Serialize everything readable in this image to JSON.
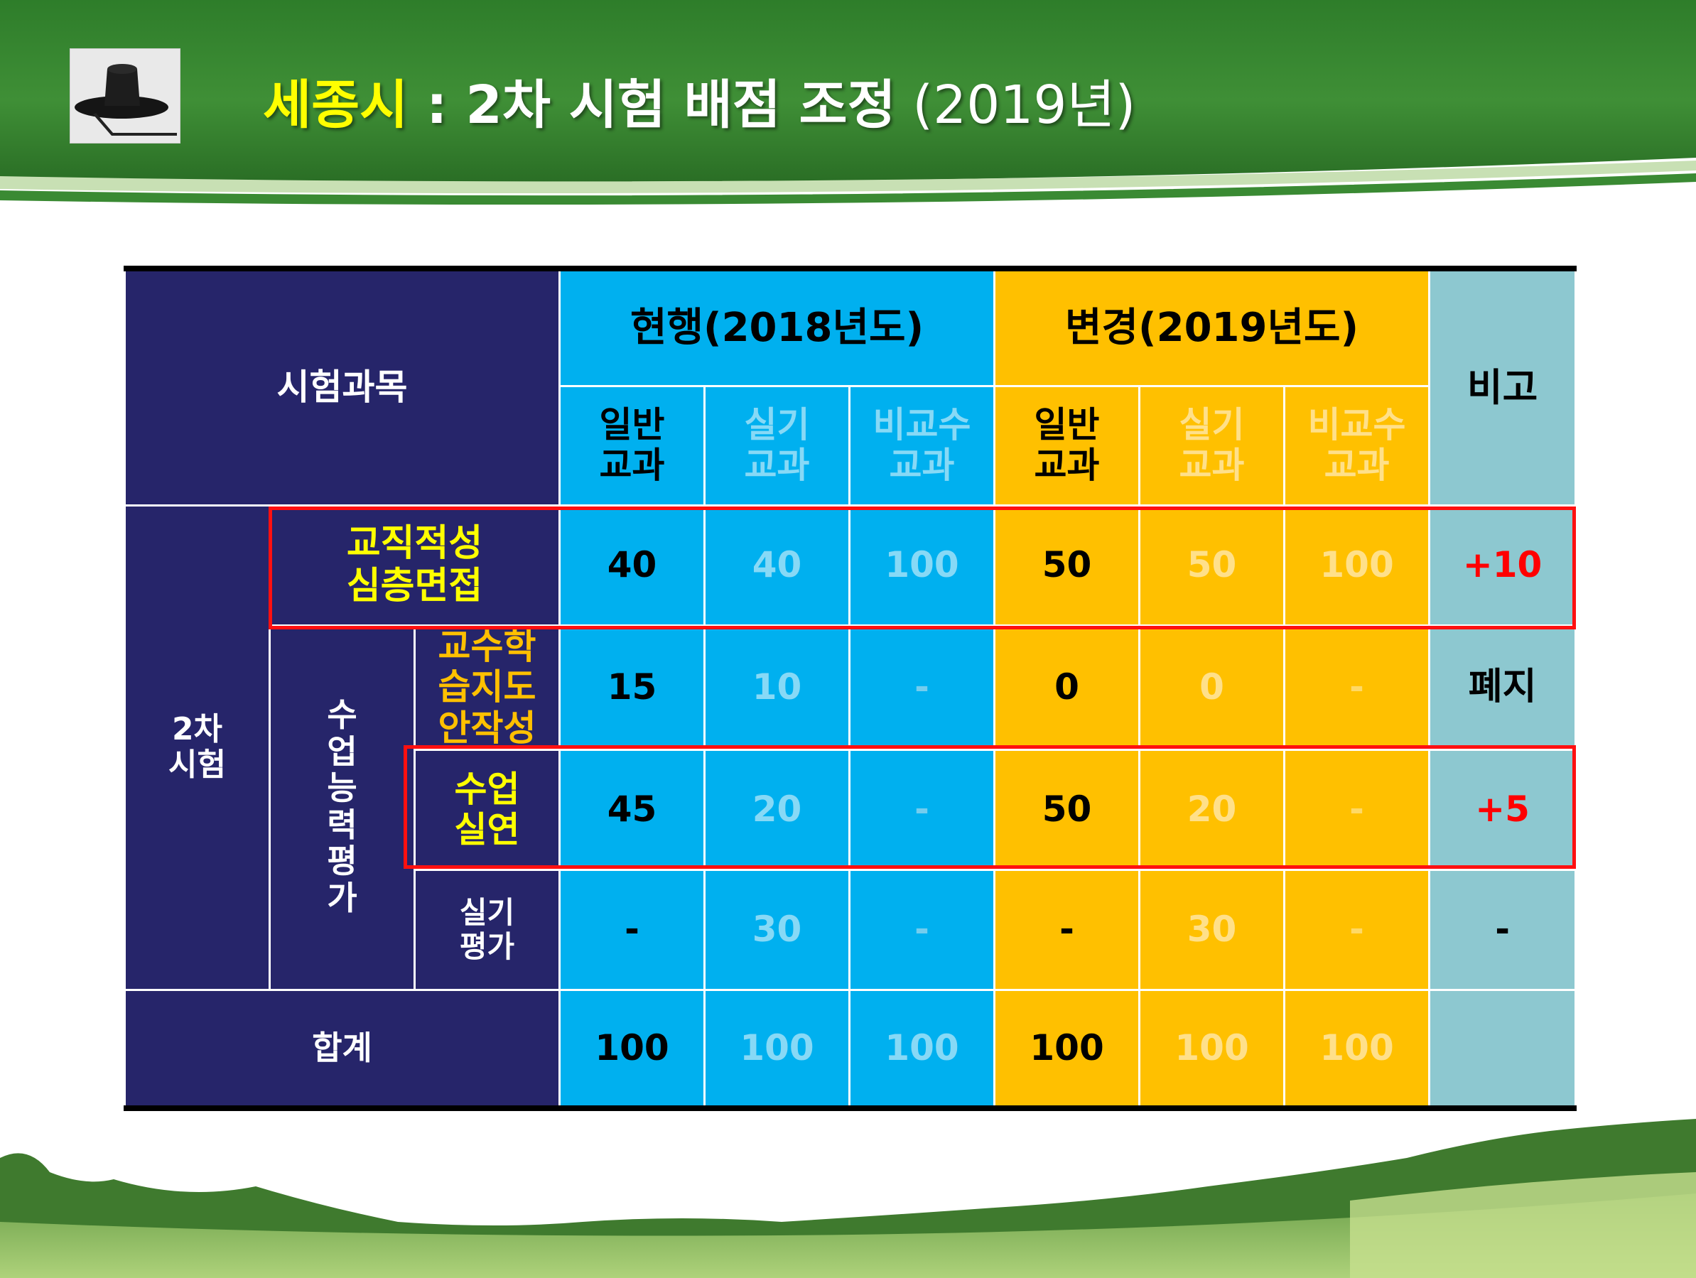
{
  "slide": {
    "title_city": "세종시",
    "title_colon": " : ",
    "title_main": "2차 시험 배점 조정",
    "title_year": " (2019년)"
  },
  "table": {
    "header": {
      "subject": "시험과목",
      "current": "현행(2018년도)",
      "changed": "변경(2019년도)",
      "note": "비고",
      "sub_cols": [
        [
          "일반",
          "교과"
        ],
        [
          "실기",
          "교과"
        ],
        [
          "비교수",
          "교과"
        ]
      ]
    },
    "group_label": [
      "2차",
      "시험"
    ],
    "ability_label": [
      "수",
      "업",
      "능",
      "력",
      "평",
      "가"
    ],
    "rows": [
      {
        "label": [
          "교직적성",
          "심층면접"
        ],
        "current": [
          "40",
          "40",
          "100"
        ],
        "changed": [
          "50",
          "50",
          "100"
        ],
        "note": "+10"
      },
      {
        "label": [
          "교수학",
          "습지도",
          "안작성"
        ],
        "current": [
          "15",
          "10",
          "-"
        ],
        "changed": [
          "0",
          "0",
          "-"
        ],
        "note": "폐지"
      },
      {
        "label": [
          "수업",
          "실연"
        ],
        "current": [
          "45",
          "20",
          "-"
        ],
        "changed": [
          "50",
          "20",
          "-"
        ],
        "note": "+5"
      },
      {
        "label": [
          "실기",
          "평가"
        ],
        "current": [
          "-",
          "30",
          "-"
        ],
        "changed": [
          "-",
          "30",
          "-"
        ],
        "note": "-"
      }
    ],
    "total": {
      "label": "합계",
      "current": [
        "100",
        "100",
        "100"
      ],
      "changed": [
        "100",
        "100",
        "100"
      ],
      "note": ""
    }
  }
}
